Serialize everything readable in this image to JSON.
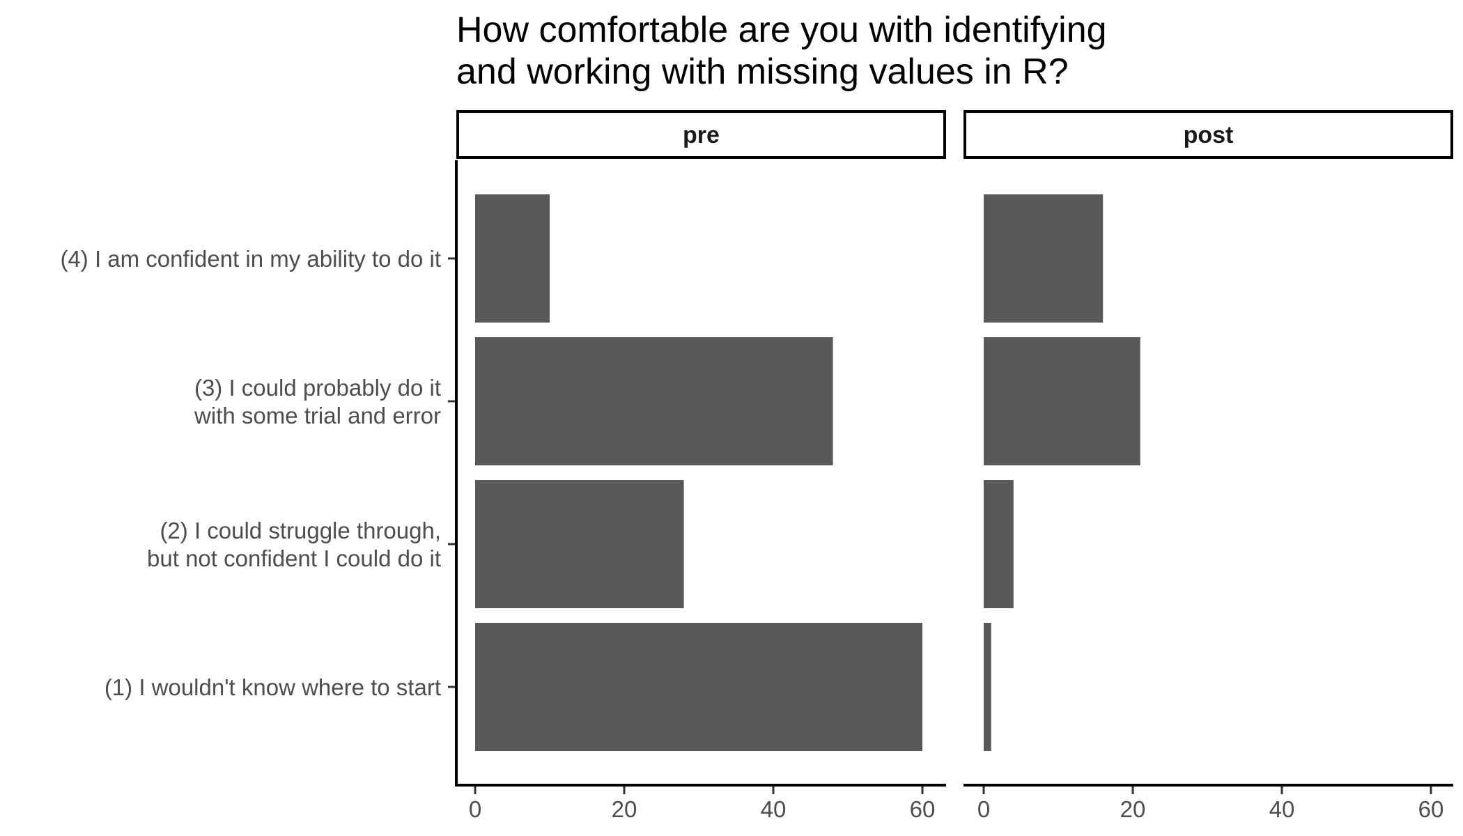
{
  "chart_data": {
    "type": "bar",
    "orientation": "horizontal",
    "title_lines": [
      "How comfortable are you with identifying",
      "and working with missing values in R?"
    ],
    "categories": [
      [
        "(1) I wouldn't know where to start"
      ],
      [
        "(2) I could struggle through,",
        "but not confident I could do it"
      ],
      [
        "(3) I could probably do it",
        "with some trial and error"
      ],
      [
        "(4) I am confident in my ability to do it"
      ]
    ],
    "facets": [
      {
        "name": "pre",
        "values": [
          60,
          28,
          48,
          10
        ]
      },
      {
        "name": "post",
        "values": [
          1,
          4,
          21,
          16
        ]
      }
    ],
    "xticks": [
      "0",
      "20",
      "40",
      "60"
    ],
    "xlim": [
      0,
      63
    ],
    "bar_color": "#595959",
    "grid": false,
    "legend": "none"
  }
}
